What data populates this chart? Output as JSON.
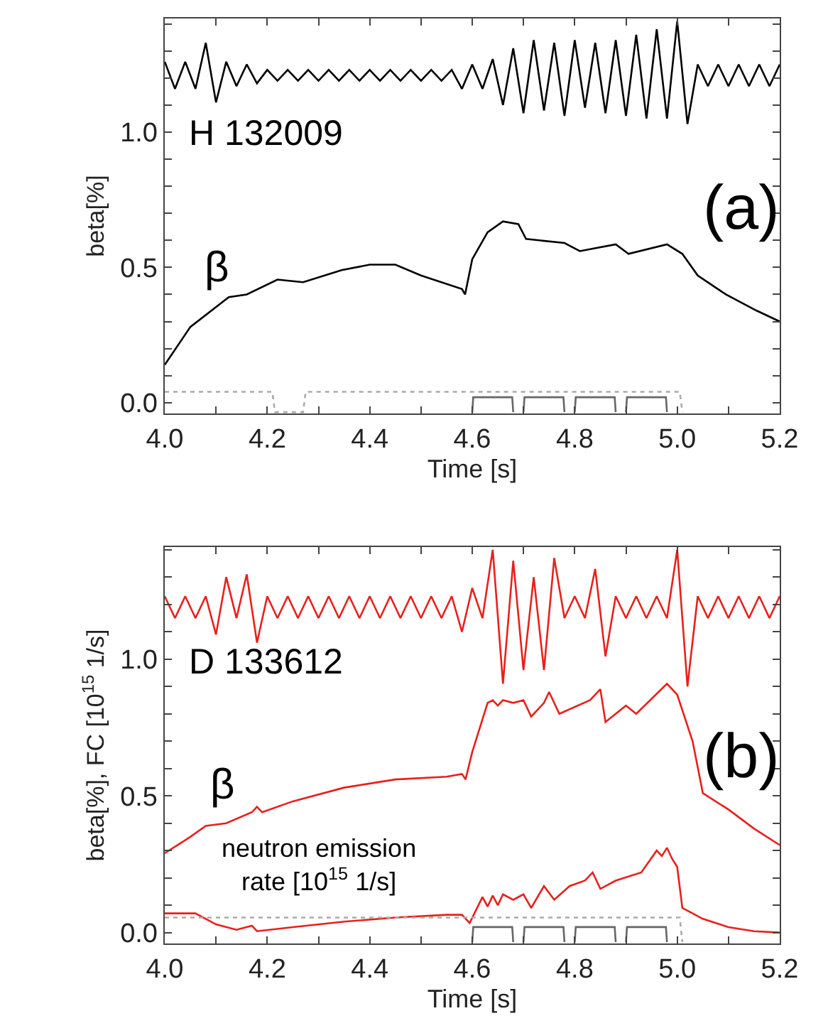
{
  "chart_data": [
    {
      "type": "line",
      "xlabel": "Time [s]",
      "ylabel": "beta[%]",
      "xlim": [
        4.0,
        5.2
      ],
      "ylim": [
        -0.04,
        1.42
      ],
      "xticks": [
        {
          "value": 4.0,
          "label": "4.0"
        },
        {
          "value": 4.1,
          "label": null
        },
        {
          "value": 4.2,
          "label": "4.2"
        },
        {
          "value": 4.3,
          "label": null
        },
        {
          "value": 4.4,
          "label": "4.4"
        },
        {
          "value": 4.5,
          "label": null
        },
        {
          "value": 4.6,
          "label": "4.6"
        },
        {
          "value": 4.7,
          "label": null
        },
        {
          "value": 4.8,
          "label": "4.8"
        },
        {
          "value": 4.9,
          "label": null
        },
        {
          "value": 5.0,
          "label": "5.0"
        },
        {
          "value": 5.1,
          "label": null
        },
        {
          "value": 5.2,
          "label": "5.2"
        }
      ],
      "yticks": [
        {
          "value": 0,
          "label": "0.0"
        },
        {
          "value": 0.1,
          "label": null
        },
        {
          "value": 0.2,
          "label": null
        },
        {
          "value": 0.3,
          "label": null
        },
        {
          "value": 0.4,
          "label": null
        },
        {
          "value": 0.5,
          "label": "0.5"
        },
        {
          "value": 0.6,
          "label": null
        },
        {
          "value": 0.7,
          "label": null
        },
        {
          "value": 0.8,
          "label": null
        },
        {
          "value": 0.9,
          "label": null
        },
        {
          "value": 1.0,
          "label": "1.0"
        },
        {
          "value": 1.1,
          "label": null
        },
        {
          "value": 1.2,
          "label": null
        },
        {
          "value": 1.3,
          "label": null
        },
        {
          "value": 1.4,
          "label": null
        }
      ],
      "grid": false,
      "marker": "none",
      "annotations": [
        "H 132009",
        "(a)",
        "β"
      ],
      "series": [
        {
          "color": "#000000",
          "x": [
            4.0,
            4.02,
            4.04,
            4.06,
            4.08,
            4.1,
            4.12,
            4.14,
            4.16,
            4.18,
            4.2,
            4.22,
            4.24,
            4.26,
            4.28,
            4.3,
            4.32,
            4.34,
            4.36,
            4.38,
            4.4,
            4.42,
            4.44,
            4.46,
            4.48,
            4.5,
            4.52,
            4.54,
            4.56,
            4.58,
            4.6,
            4.62,
            4.64,
            4.66,
            4.68,
            4.7,
            4.72,
            4.74,
            4.76,
            4.78,
            4.8,
            4.82,
            4.84,
            4.86,
            4.88,
            4.9,
            4.92,
            4.94,
            4.96,
            4.98,
            5.0,
            5.02,
            5.04,
            5.06,
            5.08,
            5.1,
            5.12,
            5.14,
            5.16,
            5.18,
            5.2
          ],
          "values": [
            1.26,
            1.16,
            1.26,
            1.16,
            1.33,
            1.11,
            1.26,
            1.17,
            1.25,
            1.18,
            1.23,
            1.19,
            1.23,
            1.19,
            1.23,
            1.19,
            1.23,
            1.19,
            1.23,
            1.19,
            1.23,
            1.19,
            1.23,
            1.19,
            1.23,
            1.19,
            1.23,
            1.19,
            1.23,
            1.16,
            1.25,
            1.16,
            1.27,
            1.1,
            1.31,
            1.07,
            1.34,
            1.08,
            1.33,
            1.06,
            1.34,
            1.09,
            1.33,
            1.07,
            1.34,
            1.06,
            1.36,
            1.05,
            1.38,
            1.05,
            1.41,
            1.03,
            1.25,
            1.17,
            1.25,
            1.17,
            1.25,
            1.17,
            1.25,
            1.17,
            1.25
          ]
        },
        {
          "color": "#000000",
          "x": [
            4.0,
            4.05,
            4.125,
            4.16,
            4.22,
            4.27,
            4.345,
            4.4,
            4.45,
            4.5,
            4.58,
            4.586,
            4.6,
            4.63,
            4.66,
            4.69,
            4.705,
            4.78,
            4.81,
            4.88,
            4.905,
            4.98,
            5.01,
            5.04,
            5.095,
            5.155,
            5.2
          ],
          "values": [
            0.14,
            0.28,
            0.39,
            0.4,
            0.455,
            0.445,
            0.49,
            0.51,
            0.51,
            0.47,
            0.42,
            0.4,
            0.53,
            0.63,
            0.67,
            0.66,
            0.605,
            0.59,
            0.56,
            0.585,
            0.55,
            0.585,
            0.55,
            0.47,
            0.4,
            0.34,
            0.3
          ]
        },
        {
          "color": "#aaaaaa",
          "line_style": "dotted",
          "x": [
            4.0,
            4.21,
            4.215,
            4.27,
            4.275,
            5.005,
            5.01
          ],
          "values": [
            0.04,
            0.04,
            -0.035,
            -0.035,
            0.04,
            0.04,
            -0.035
          ]
        },
        {
          "color": "#666666",
          "x": [
            4.6,
            4.602,
            4.678,
            4.68
          ],
          "values": [
            -0.035,
            0.02,
            0.02,
            -0.035
          ]
        },
        {
          "color": "#666666",
          "x": [
            4.7,
            4.702,
            4.778,
            4.78
          ],
          "values": [
            -0.035,
            0.02,
            0.02,
            -0.035
          ]
        },
        {
          "color": "#666666",
          "x": [
            4.8,
            4.802,
            4.878,
            4.88
          ],
          "values": [
            -0.035,
            0.02,
            0.02,
            -0.035
          ]
        },
        {
          "color": "#666666",
          "x": [
            4.9,
            4.902,
            4.978,
            4.98
          ],
          "values": [
            -0.035,
            0.02,
            0.02,
            -0.035
          ]
        }
      ]
    },
    {
      "type": "line",
      "xlabel": "Time [s]",
      "ylabel": "beta[%], FC [10$^{15}$ 1/s]",
      "xlim": [
        4.0,
        5.2
      ],
      "ylim": [
        -0.04,
        1.41
      ],
      "xticks": [
        {
          "value": 4.0,
          "label": "4.0"
        },
        {
          "value": 4.1,
          "label": null
        },
        {
          "value": 4.2,
          "label": "4.2"
        },
        {
          "value": 4.3,
          "label": null
        },
        {
          "value": 4.4,
          "label": "4.4"
        },
        {
          "value": 4.5,
          "label": null
        },
        {
          "value": 4.6,
          "label": "4.6"
        },
        {
          "value": 4.7,
          "label": null
        },
        {
          "value": 4.8,
          "label": "4.8"
        },
        {
          "value": 4.9,
          "label": null
        },
        {
          "value": 5.0,
          "label": "5.0"
        },
        {
          "value": 5.1,
          "label": null
        },
        {
          "value": 5.2,
          "label": "5.2"
        }
      ],
      "yticks": [
        {
          "value": 0,
          "label": "0.0"
        },
        {
          "value": 0.1,
          "label": null
        },
        {
          "value": 0.2,
          "label": null
        },
        {
          "value": 0.3,
          "label": null
        },
        {
          "value": 0.4,
          "label": null
        },
        {
          "value": 0.5,
          "label": "0.5"
        },
        {
          "value": 0.6,
          "label": null
        },
        {
          "value": 0.7,
          "label": null
        },
        {
          "value": 0.8,
          "label": null
        },
        {
          "value": 0.9,
          "label": null
        },
        {
          "value": 1.0,
          "label": "1.0"
        },
        {
          "value": 1.1,
          "label": null
        },
        {
          "value": 1.2,
          "label": null
        },
        {
          "value": 1.3,
          "label": null
        },
        {
          "value": 1.4,
          "label": null
        }
      ],
      "grid": false,
      "marker": "none",
      "annotations": [
        "D 133612",
        "(b)",
        "β",
        "neutron emission\nrate [10$^{15}$ 1/s]"
      ],
      "series": [
        {
          "color": "#e8201c",
          "x": [
            4.0,
            4.02,
            4.04,
            4.06,
            4.08,
            4.1,
            4.12,
            4.14,
            4.16,
            4.18,
            4.2,
            4.22,
            4.24,
            4.26,
            4.28,
            4.3,
            4.32,
            4.34,
            4.36,
            4.38,
            4.4,
            4.42,
            4.44,
            4.46,
            4.48,
            4.5,
            4.52,
            4.54,
            4.56,
            4.58,
            4.6,
            4.62,
            4.64,
            4.66,
            4.68,
            4.7,
            4.72,
            4.74,
            4.76,
            4.78,
            4.8,
            4.82,
            4.84,
            4.86,
            4.88,
            4.9,
            4.92,
            4.94,
            4.96,
            4.98,
            5.0,
            5.02,
            5.04,
            5.06,
            5.08,
            5.1,
            5.12,
            5.14,
            5.16,
            5.18,
            5.2
          ],
          "values": [
            1.23,
            1.15,
            1.23,
            1.15,
            1.23,
            1.09,
            1.3,
            1.15,
            1.31,
            1.06,
            1.23,
            1.15,
            1.23,
            1.15,
            1.23,
            1.15,
            1.23,
            1.15,
            1.23,
            1.15,
            1.23,
            1.15,
            1.23,
            1.15,
            1.23,
            1.15,
            1.23,
            1.15,
            1.23,
            1.1,
            1.26,
            1.15,
            1.4,
            0.91,
            1.36,
            0.96,
            1.3,
            0.96,
            1.37,
            1.15,
            1.23,
            1.15,
            1.33,
            1.01,
            1.23,
            1.15,
            1.23,
            1.15,
            1.23,
            1.15,
            1.4,
            0.9,
            1.23,
            1.15,
            1.23,
            1.15,
            1.23,
            1.15,
            1.23,
            1.15,
            1.23
          ]
        },
        {
          "color": "#e8201c",
          "x": [
            4.0,
            4.05,
            4.08,
            4.12,
            4.17,
            4.18,
            4.19,
            4.25,
            4.35,
            4.45,
            4.55,
            4.58,
            4.587,
            4.6,
            4.63,
            4.64,
            4.65,
            4.66,
            4.68,
            4.7,
            4.715,
            4.74,
            4.75,
            4.77,
            4.83,
            4.85,
            4.86,
            4.9,
            4.92,
            4.98,
            5.0,
            5.03,
            5.05,
            5.1,
            5.15,
            5.2
          ],
          "values": [
            0.29,
            0.35,
            0.39,
            0.4,
            0.44,
            0.46,
            0.44,
            0.48,
            0.53,
            0.56,
            0.57,
            0.58,
            0.56,
            0.66,
            0.84,
            0.85,
            0.83,
            0.85,
            0.84,
            0.85,
            0.79,
            0.84,
            0.88,
            0.8,
            0.85,
            0.89,
            0.77,
            0.83,
            0.8,
            0.91,
            0.87,
            0.7,
            0.51,
            0.45,
            0.38,
            0.32
          ]
        },
        {
          "color": "#e8201c",
          "x": [
            4.0,
            4.06,
            4.1,
            4.14,
            4.17,
            4.18,
            4.25,
            4.35,
            4.45,
            4.55,
            4.58,
            4.595,
            4.62,
            4.63,
            4.64,
            4.65,
            4.66,
            4.68,
            4.7,
            4.715,
            4.74,
            4.76,
            4.79,
            4.82,
            4.835,
            4.85,
            4.88,
            4.93,
            4.96,
            4.97,
            4.98,
            4.99,
            5.0,
            5.01,
            5.05,
            5.1,
            5.15,
            5.2
          ],
          "values": [
            0.07,
            0.07,
            0.03,
            0.01,
            0.025,
            0.005,
            0.02,
            0.04,
            0.055,
            0.065,
            0.065,
            0.035,
            0.13,
            0.095,
            0.135,
            0.1,
            0.14,
            0.12,
            0.14,
            0.09,
            0.17,
            0.12,
            0.17,
            0.19,
            0.22,
            0.16,
            0.19,
            0.22,
            0.3,
            0.28,
            0.31,
            0.27,
            0.24,
            0.09,
            0.05,
            0.02,
            0.005,
            0.0
          ]
        },
        {
          "color": "#aaaaaa",
          "line_style": "dotted",
          "x": [
            4.0,
            5.005,
            5.01
          ],
          "values": [
            0.055,
            0.055,
            -0.035
          ]
        },
        {
          "color": "#666666",
          "x": [
            4.6,
            4.602,
            4.678,
            4.68
          ],
          "values": [
            -0.035,
            0.02,
            0.02,
            -0.035
          ]
        },
        {
          "color": "#666666",
          "x": [
            4.7,
            4.702,
            4.778,
            4.78
          ],
          "values": [
            -0.035,
            0.02,
            0.02,
            -0.035
          ]
        },
        {
          "color": "#666666",
          "x": [
            4.8,
            4.802,
            4.878,
            4.88
          ],
          "values": [
            -0.035,
            0.02,
            0.02,
            -0.035
          ]
        },
        {
          "color": "#666666",
          "x": [
            4.9,
            4.902,
            4.978,
            4.98
          ],
          "values": [
            -0.035,
            0.02,
            0.02,
            -0.035
          ]
        }
      ]
    }
  ]
}
